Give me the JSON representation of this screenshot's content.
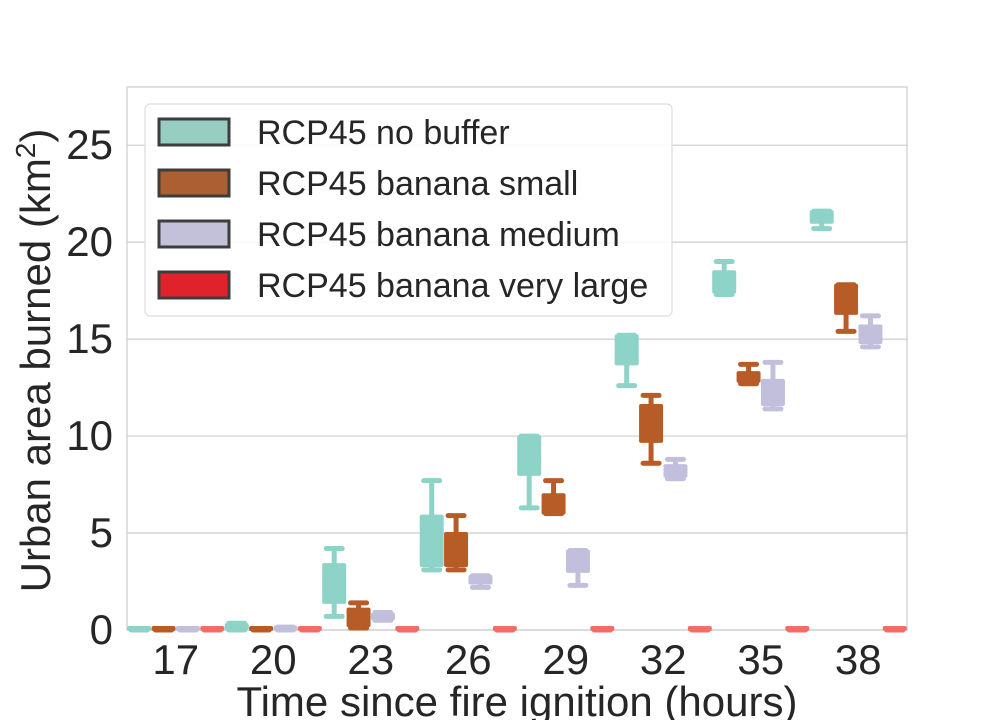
{
  "chart_data": {
    "type": "box",
    "xlabel": "Time since fire ignition (hours)",
    "ylabel": "Urban area burned (km",
    "ylabel_sup": "2",
    "ylabel_close": ")",
    "ylim": [
      0,
      28
    ],
    "yticks": [
      0,
      5,
      10,
      15,
      20,
      25
    ],
    "grid": true,
    "legend_position": "top-left",
    "categories": [
      "17",
      "20",
      "23",
      "26",
      "29",
      "32",
      "35",
      "38"
    ],
    "series": [
      {
        "name": "RCP45 no buffer",
        "color": "#8dd3c7",
        "legend_color": "#98cdc1",
        "boxes": [
          {
            "min": 0,
            "q1": 0,
            "median": 0,
            "q3": 0,
            "max": 0
          },
          {
            "min": 0,
            "q1": 0.05,
            "median": 0.15,
            "q3": 0.3,
            "max": 0.35
          },
          {
            "min": 0.7,
            "q1": 1.4,
            "median": 2.3,
            "q3": 3.4,
            "max": 4.2
          },
          {
            "min": 3.1,
            "q1": 3.3,
            "median": 4.5,
            "q3": 5.9,
            "max": 7.7
          },
          {
            "min": 6.3,
            "q1": 8.0,
            "median": 8.8,
            "q3": 10.0,
            "max": 10.0
          },
          {
            "min": 12.6,
            "q1": 13.7,
            "median": 14.3,
            "q3": 15.2,
            "max": 15.2
          },
          {
            "min": 17.3,
            "q1": 17.4,
            "median": 17.9,
            "q3": 18.5,
            "max": 19.0
          },
          {
            "min": 20.7,
            "q1": 21.0,
            "median": 21.3,
            "q3": 21.6,
            "max": 21.6
          }
        ]
      },
      {
        "name": "RCP45 banana small",
        "color": "#b85c27",
        "legend_color": "#ad5f34",
        "boxes": [
          {
            "min": 0,
            "q1": 0,
            "median": 0,
            "q3": 0,
            "max": 0
          },
          {
            "min": 0,
            "q1": 0,
            "median": 0.02,
            "q3": 0.05,
            "max": 0.08
          },
          {
            "min": 0.1,
            "q1": 0.2,
            "median": 0.6,
            "q3": 1.1,
            "max": 1.4
          },
          {
            "min": 3.1,
            "q1": 3.3,
            "median": 3.9,
            "q3": 5.0,
            "max": 5.9
          },
          {
            "min": 6.0,
            "q1": 6.0,
            "median": 6.6,
            "q3": 7.0,
            "max": 7.7
          },
          {
            "min": 8.6,
            "q1": 9.7,
            "median": 10.5,
            "q3": 11.6,
            "max": 12.1
          },
          {
            "min": 12.7,
            "q1": 12.8,
            "median": 13.1,
            "q3": 13.3,
            "max": 13.7
          },
          {
            "min": 15.4,
            "q1": 16.3,
            "median": 16.9,
            "q3": 17.8,
            "max": 17.8
          }
        ]
      },
      {
        "name": "RCP45 banana medium",
        "color": "#c2bfdc",
        "legend_color": "#c3c1da",
        "boxes": [
          {
            "min": 0,
            "q1": 0,
            "median": 0,
            "q3": 0,
            "max": 0
          },
          {
            "min": 0,
            "q1": 0.02,
            "median": 0.06,
            "q3": 0.1,
            "max": 0.15
          },
          {
            "min": 0.5,
            "q1": 0.55,
            "median": 0.7,
            "q3": 0.85,
            "max": 0.9
          },
          {
            "min": 2.2,
            "q1": 2.4,
            "median": 2.6,
            "q3": 2.8,
            "max": 2.8
          },
          {
            "min": 2.3,
            "q1": 3.0,
            "median": 3.5,
            "q3": 4.1,
            "max": 4.1
          },
          {
            "min": 7.8,
            "q1": 7.9,
            "median": 8.2,
            "q3": 8.5,
            "max": 8.8
          },
          {
            "min": 11.4,
            "q1": 11.6,
            "median": 12.1,
            "q3": 12.9,
            "max": 13.8
          },
          {
            "min": 14.6,
            "q1": 14.8,
            "median": 15.2,
            "q3": 15.7,
            "max": 16.2
          }
        ]
      },
      {
        "name": "RCP45 banana very large",
        "color": "#f26d62",
        "legend_color": "#e0222a",
        "boxes": [
          {
            "min": 0,
            "q1": 0,
            "median": 0,
            "q3": 0,
            "max": 0
          },
          {
            "min": 0,
            "q1": 0,
            "median": 0,
            "q3": 0,
            "max": 0
          },
          {
            "min": 0,
            "q1": 0,
            "median": 0,
            "q3": 0,
            "max": 0
          },
          {
            "min": 0,
            "q1": 0,
            "median": 0,
            "q3": 0,
            "max": 0
          },
          {
            "min": 0,
            "q1": 0,
            "median": 0,
            "q3": 0,
            "max": 0
          },
          {
            "min": 0,
            "q1": 0,
            "median": 0,
            "q3": 0,
            "max": 0
          },
          {
            "min": 0,
            "q1": 0,
            "median": 0,
            "q3": 0,
            "max": 0
          },
          {
            "min": 0,
            "q1": 0,
            "median": 0,
            "q3": 0,
            "max": 0
          }
        ]
      }
    ]
  }
}
